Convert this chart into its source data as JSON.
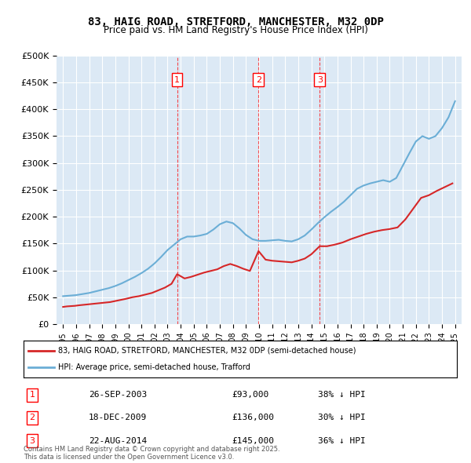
{
  "title": "83, HAIG ROAD, STRETFORD, MANCHESTER, M32 0DP",
  "subtitle": "Price paid vs. HM Land Registry's House Price Index (HPI)",
  "background_color": "#dce9f5",
  "plot_bg_color": "#dce9f5",
  "ylabel": "",
  "ylim": [
    0,
    500000
  ],
  "yticks": [
    0,
    50000,
    100000,
    150000,
    200000,
    250000,
    300000,
    350000,
    400000,
    450000,
    500000
  ],
  "ytick_labels": [
    "£0",
    "£50K",
    "£100K",
    "£150K",
    "£200K",
    "£250K",
    "£300K",
    "£350K",
    "£400K",
    "£450K",
    "£500K"
  ],
  "legend_label_red": "83, HAIG ROAD, STRETFORD, MANCHESTER, M32 0DP (semi-detached house)",
  "legend_label_blue": "HPI: Average price, semi-detached house, Trafford",
  "footer": "Contains HM Land Registry data © Crown copyright and database right 2025.\nThis data is licensed under the Open Government Licence v3.0.",
  "transactions": [
    {
      "num": 1,
      "date": "26-SEP-2003",
      "price": 93000,
      "pct": "38% ↓ HPI",
      "x_year": 2003.73
    },
    {
      "num": 2,
      "date": "18-DEC-2009",
      "price": 136000,
      "pct": "30% ↓ HPI",
      "x_year": 2009.96
    },
    {
      "num": 3,
      "date": "22-AUG-2014",
      "price": 145000,
      "pct": "36% ↓ HPI",
      "x_year": 2014.64
    }
  ],
  "hpi_color": "#6baed6",
  "paid_color": "#d62728",
  "hpi_x": [
    1995,
    1995.5,
    1996,
    1996.5,
    1997,
    1997.5,
    1998,
    1998.5,
    1999,
    1999.5,
    2000,
    2000.5,
    2001,
    2001.5,
    2002,
    2002.5,
    2003,
    2003.5,
    2004,
    2004.5,
    2005,
    2005.5,
    2006,
    2006.5,
    2007,
    2007.5,
    2008,
    2008.5,
    2009,
    2009.5,
    2010,
    2010.5,
    2011,
    2011.5,
    2012,
    2012.5,
    2013,
    2013.5,
    2014,
    2014.5,
    2015,
    2015.5,
    2016,
    2016.5,
    2017,
    2017.5,
    2018,
    2018.5,
    2019,
    2019.5,
    2020,
    2020.5,
    2021,
    2021.5,
    2022,
    2022.5,
    2023,
    2023.5,
    2024,
    2024.5,
    2025
  ],
  "hpi_y": [
    52000,
    53000,
    54000,
    56000,
    58000,
    61000,
    64000,
    67000,
    71000,
    76000,
    82000,
    88000,
    95000,
    103000,
    113000,
    125000,
    138000,
    148000,
    158000,
    163000,
    163000,
    165000,
    168000,
    176000,
    186000,
    191000,
    188000,
    178000,
    166000,
    158000,
    155000,
    155000,
    156000,
    157000,
    155000,
    154000,
    158000,
    165000,
    176000,
    188000,
    199000,
    209000,
    218000,
    228000,
    240000,
    252000,
    258000,
    262000,
    265000,
    268000,
    265000,
    272000,
    295000,
    318000,
    340000,
    350000,
    345000,
    350000,
    365000,
    385000,
    415000
  ],
  "paid_x": [
    1995,
    1995.3,
    1995.6,
    1995.9,
    1996.2,
    1996.6,
    1997.0,
    1997.4,
    1997.8,
    1998.2,
    1998.6,
    1999.0,
    1999.4,
    1999.8,
    2000.3,
    2000.8,
    2001.3,
    2001.8,
    2002.3,
    2002.8,
    2003.3,
    2003.73,
    2004.3,
    2004.8,
    2005.3,
    2005.8,
    2006.3,
    2006.8,
    2007.3,
    2007.8,
    2008.3,
    2008.8,
    2009.3,
    2009.96,
    2010.5,
    2011.0,
    2011.5,
    2012.0,
    2012.5,
    2013.0,
    2013.5,
    2014.0,
    2014.64,
    2015.2,
    2015.8,
    2016.4,
    2017.0,
    2017.6,
    2018.2,
    2018.8,
    2019.4,
    2020.0,
    2020.6,
    2021.2,
    2021.8,
    2022.4,
    2023.0,
    2023.6,
    2024.2,
    2024.8
  ],
  "paid_y": [
    32000,
    33000,
    33500,
    34000,
    35000,
    36000,
    37000,
    38000,
    39000,
    40000,
    41000,
    43000,
    45000,
    47000,
    50000,
    52000,
    55000,
    58000,
    63000,
    68000,
    75000,
    93000,
    85000,
    88000,
    92000,
    96000,
    99000,
    102000,
    108000,
    112000,
    108000,
    103000,
    99000,
    136000,
    120000,
    118000,
    117000,
    116000,
    115000,
    118000,
    122000,
    130000,
    145000,
    145000,
    148000,
    152000,
    158000,
    163000,
    168000,
    172000,
    175000,
    177000,
    180000,
    195000,
    215000,
    235000,
    240000,
    248000,
    255000,
    262000
  ],
  "xlim": [
    1994.5,
    2025.5
  ],
  "xticks": [
    1995,
    1996,
    1997,
    1998,
    1999,
    2000,
    2001,
    2002,
    2003,
    2004,
    2005,
    2006,
    2007,
    2008,
    2009,
    2010,
    2011,
    2012,
    2013,
    2014,
    2015,
    2016,
    2017,
    2018,
    2019,
    2020,
    2021,
    2022,
    2023,
    2024,
    2025
  ]
}
